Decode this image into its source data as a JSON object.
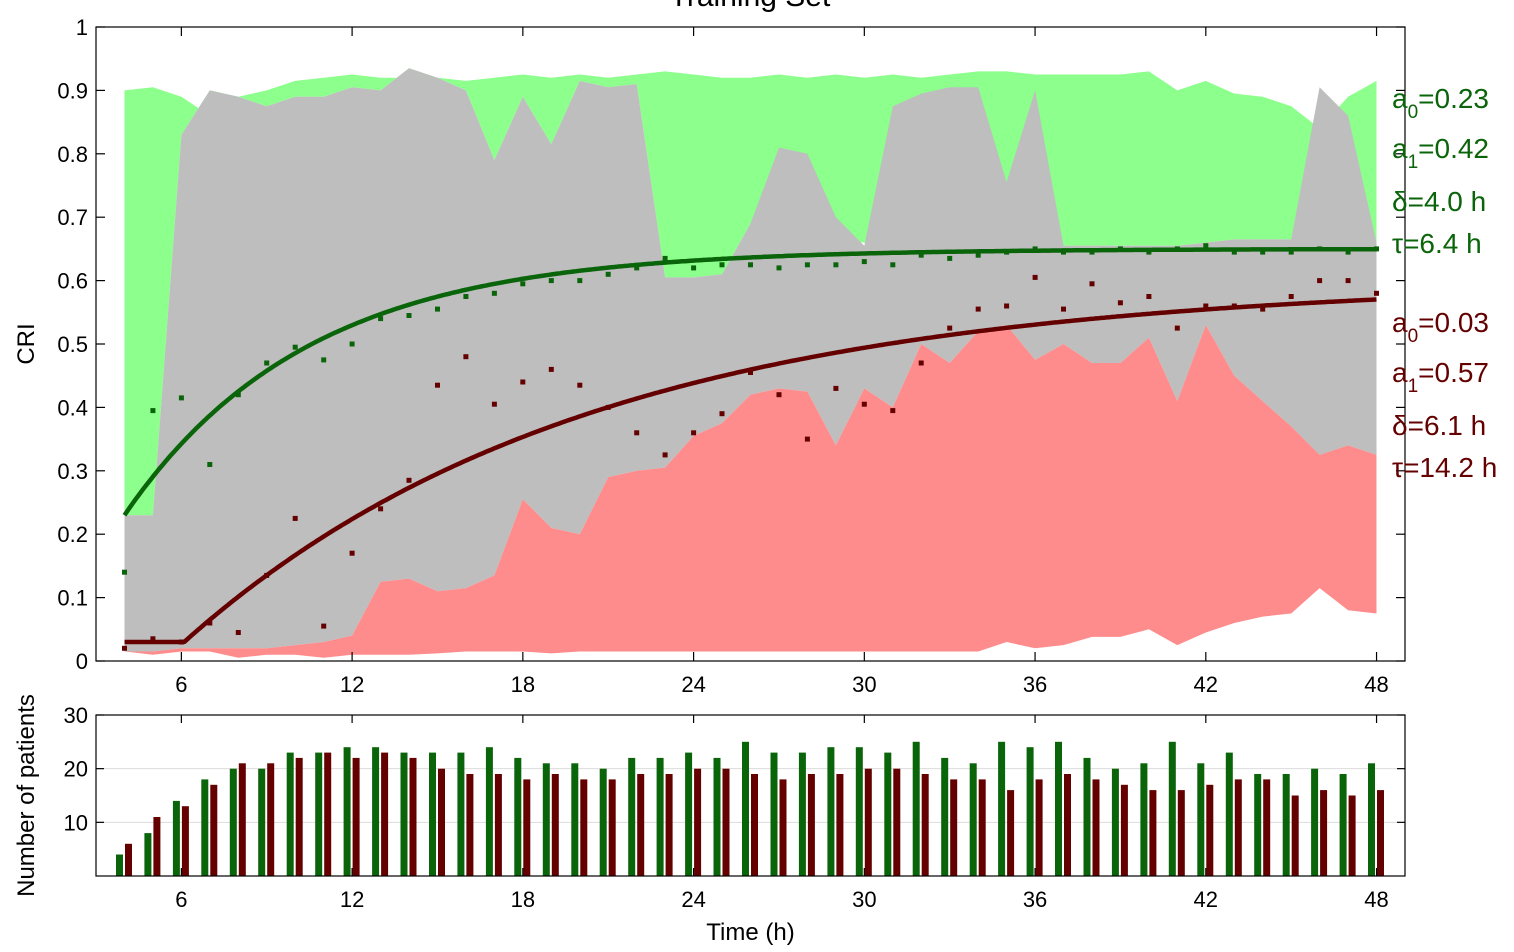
{
  "chart_data": [
    {
      "type": "line",
      "title": "Training Set",
      "xlabel": "",
      "ylabel": "CRI",
      "xlim": [
        3,
        49
      ],
      "ylim": [
        0,
        1
      ],
      "x_ticks": [
        6,
        12,
        18,
        24,
        30,
        36,
        42,
        48
      ],
      "y_ticks": [
        "0",
        "0.1",
        "0.2",
        "0.3",
        "0.4",
        "0.5",
        "0.6",
        "0.7",
        "0.8",
        "0.9",
        "1"
      ],
      "grid": false,
      "colors": {
        "green_band": "#8cff8c",
        "grey_band": "#bebebe",
        "red_band": "#ff8c8c",
        "green_line": "#0a640a",
        "red_line": "#640000"
      },
      "bands": {
        "x": [
          4,
          5,
          6,
          7,
          8,
          9,
          10,
          11,
          12,
          13,
          14,
          15,
          16,
          17,
          18,
          19,
          20,
          21,
          22,
          23,
          24,
          25,
          26,
          27,
          28,
          29,
          30,
          31,
          32,
          33,
          34,
          35,
          36,
          37,
          38,
          39,
          40,
          41,
          42,
          43,
          44,
          45,
          46,
          47,
          48
        ],
        "green_upper": [
          0.9,
          0.905,
          0.89,
          0.86,
          0.89,
          0.9,
          0.915,
          0.92,
          0.925,
          0.92,
          0.92,
          0.92,
          0.915,
          0.92,
          0.925,
          0.92,
          0.925,
          0.92,
          0.925,
          0.93,
          0.925,
          0.92,
          0.92,
          0.925,
          0.92,
          0.925,
          0.92,
          0.925,
          0.92,
          0.925,
          0.93,
          0.93,
          0.925,
          0.925,
          0.925,
          0.925,
          0.93,
          0.9,
          0.915,
          0.895,
          0.89,
          0.875,
          0.84,
          0.89,
          0.915
        ],
        "green_lower": [
          0.23,
          0.23,
          0.83,
          0.9,
          0.89,
          0.875,
          0.89,
          0.89,
          0.905,
          0.9,
          0.935,
          0.92,
          0.9,
          0.79,
          0.89,
          0.815,
          0.915,
          0.905,
          0.91,
          0.605,
          0.605,
          0.61,
          0.69,
          0.69,
          0.665,
          0.665,
          0.66,
          0.66,
          0.665,
          0.665,
          0.665,
          0.66,
          0.66,
          0.655,
          0.655,
          0.655,
          0.655,
          0.655,
          0.66,
          0.665,
          0.665,
          0.665,
          0.665,
          0.665,
          0.66
        ],
        "grey_upper": [
          0.23,
          0.23,
          0.83,
          0.9,
          0.89,
          0.875,
          0.89,
          0.89,
          0.905,
          0.9,
          0.935,
          0.92,
          0.9,
          0.79,
          0.89,
          0.815,
          0.915,
          0.905,
          0.91,
          0.605,
          0.605,
          0.61,
          0.69,
          0.81,
          0.8,
          0.7,
          0.655,
          0.875,
          0.895,
          0.905,
          0.905,
          0.755,
          0.9,
          0.655,
          0.655,
          0.655,
          0.655,
          0.655,
          0.66,
          0.665,
          0.665,
          0.665,
          0.905,
          0.86,
          0.66
        ],
        "red_upper": [
          0.015,
          0.015,
          0.02,
          0.02,
          0.02,
          0.02,
          0.025,
          0.03,
          0.04,
          0.125,
          0.13,
          0.11,
          0.115,
          0.135,
          0.255,
          0.21,
          0.2,
          0.29,
          0.3,
          0.305,
          0.355,
          0.375,
          0.42,
          0.43,
          0.425,
          0.34,
          0.43,
          0.4,
          0.5,
          0.47,
          0.52,
          0.53,
          0.475,
          0.5,
          0.47,
          0.47,
          0.51,
          0.41,
          0.53,
          0.45,
          0.41,
          0.37,
          0.325,
          0.34,
          0.325
        ],
        "red_lower": [
          0.015,
          0.01,
          0.015,
          0.015,
          0.005,
          0.01,
          0.01,
          0.005,
          0.01,
          0.01,
          0.01,
          0.012,
          0.015,
          0.015,
          0.015,
          0.012,
          0.015,
          0.015,
          0.015,
          0.015,
          0.015,
          0.015,
          0.015,
          0.015,
          0.015,
          0.015,
          0.015,
          0.015,
          0.015,
          0.015,
          0.015,
          0.03,
          0.02,
          0.025,
          0.038,
          0.038,
          0.05,
          0.025,
          0.045,
          0.06,
          0.07,
          0.075,
          0.115,
          0.08,
          0.075
        ]
      },
      "series": [
        {
          "name": "",
          "color": "#0a640a",
          "model": {
            "a0": 0.23,
            "a1": 0.42,
            "delta": 4.0,
            "tau": 6.4
          },
          "points_x": [
            4,
            5,
            6,
            7,
            8,
            9,
            10,
            11,
            12,
            13,
            14,
            15,
            16,
            17,
            18,
            19,
            20,
            21,
            22,
            23,
            24,
            25,
            26,
            27,
            28,
            29,
            30,
            31,
            32,
            33,
            34,
            35,
            36,
            37,
            38,
            39,
            40,
            41,
            42,
            43,
            44,
            45,
            46,
            47,
            48
          ],
          "points_y": [
            0.14,
            0.395,
            0.415,
            0.31,
            0.42,
            0.47,
            0.495,
            0.475,
            0.5,
            0.54,
            0.545,
            0.555,
            0.575,
            0.58,
            0.595,
            0.6,
            0.6,
            0.61,
            0.62,
            0.635,
            0.62,
            0.625,
            0.625,
            0.62,
            0.625,
            0.625,
            0.63,
            0.625,
            0.64,
            0.635,
            0.64,
            0.645,
            0.65,
            0.645,
            0.645,
            0.65,
            0.645,
            0.65,
            0.655,
            0.645,
            0.645,
            0.645,
            0.65,
            0.645,
            0.65
          ]
        },
        {
          "name": "",
          "color": "#640000",
          "model": {
            "a0": 0.03,
            "a1": 0.57,
            "delta": 6.1,
            "tau": 14.2
          },
          "points_x": [
            4,
            5,
            6,
            7,
            8,
            9,
            10,
            11,
            12,
            13,
            14,
            15,
            16,
            17,
            18,
            19,
            20,
            21,
            22,
            23,
            24,
            25,
            26,
            27,
            28,
            29,
            30,
            31,
            32,
            33,
            34,
            35,
            36,
            37,
            38,
            39,
            40,
            41,
            42,
            43,
            44,
            45,
            46,
            47,
            48
          ],
          "points_y": [
            0.02,
            0.035,
            0.03,
            0.06,
            0.045,
            0.135,
            0.225,
            0.055,
            0.17,
            0.24,
            0.285,
            0.435,
            0.48,
            0.405,
            0.44,
            0.46,
            0.435,
            0.4,
            0.36,
            0.325,
            0.36,
            0.39,
            0.455,
            0.42,
            0.35,
            0.43,
            0.405,
            0.395,
            0.47,
            0.525,
            0.555,
            0.56,
            0.605,
            0.555,
            0.595,
            0.565,
            0.575,
            0.525,
            0.56,
            0.56,
            0.555,
            0.575,
            0.6,
            0.6,
            0.58
          ]
        }
      ],
      "annotations": {
        "green": [
          {
            "base": "a",
            "sub": "0",
            "text": "=0.23"
          },
          {
            "base": "a",
            "sub": "1",
            "text": "=0.42"
          },
          {
            "base": "δ",
            "sub": "",
            "text": "=4.0 h"
          },
          {
            "base": "τ",
            "sub": "",
            "text": "=6.4 h"
          }
        ],
        "red": [
          {
            "base": "a",
            "sub": "0",
            "text": "=0.03"
          },
          {
            "base": "a",
            "sub": "1",
            "text": "=0.57"
          },
          {
            "base": "δ",
            "sub": "",
            "text": "=6.1 h"
          },
          {
            "base": "τ",
            "sub": "",
            "text": "=14.2 h"
          }
        ]
      }
    },
    {
      "type": "bar",
      "title": "",
      "xlabel": "Time (h)",
      "ylabel": "Number of patients",
      "xlim": [
        3,
        49
      ],
      "ylim": [
        0,
        30
      ],
      "x_ticks": [
        6,
        12,
        18,
        24,
        30,
        36,
        42,
        48
      ],
      "y_ticks": [
        "10",
        "20",
        "30"
      ],
      "grid": true,
      "categories": [
        4,
        5,
        6,
        7,
        8,
        9,
        10,
        11,
        12,
        13,
        14,
        15,
        16,
        17,
        18,
        19,
        20,
        21,
        22,
        23,
        24,
        25,
        26,
        27,
        28,
        29,
        30,
        31,
        32,
        33,
        34,
        35,
        36,
        37,
        38,
        39,
        40,
        41,
        42,
        43,
        44,
        45,
        46,
        47,
        48
      ],
      "series": [
        {
          "name": "",
          "color": "#0a640a",
          "values": [
            4,
            8,
            14,
            18,
            20,
            20,
            23,
            23,
            24,
            24,
            23,
            23,
            23,
            24,
            22,
            21,
            21,
            20,
            22,
            22,
            23,
            22,
            25,
            23,
            23,
            24,
            24,
            23,
            25,
            22,
            21,
            25,
            24,
            25,
            22,
            20,
            21,
            25,
            21,
            23,
            19,
            19,
            20,
            19,
            21
          ]
        },
        {
          "name": "",
          "color": "#640000",
          "values": [
            6,
            11,
            13,
            17,
            21,
            21,
            22,
            23,
            22,
            23,
            22,
            20,
            19,
            19,
            18,
            19,
            18,
            18,
            19,
            19,
            20,
            20,
            19,
            18,
            19,
            19,
            20,
            20,
            19,
            18,
            18,
            16,
            18,
            19,
            18,
            17,
            16,
            16,
            17,
            18,
            18,
            15,
            16,
            15,
            16
          ]
        }
      ]
    }
  ]
}
